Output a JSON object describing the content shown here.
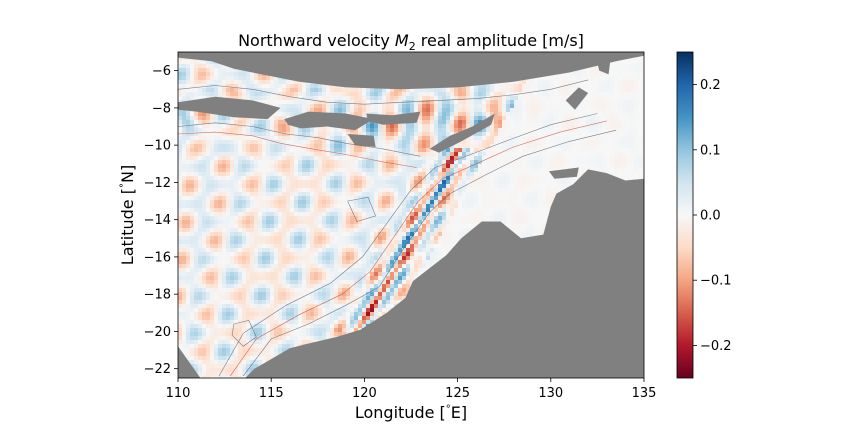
{
  "chart_data": {
    "type": "heatmap",
    "title": "Northward velocity M2 real amplitude [m/s]",
    "title_parts": {
      "pre": "Northward velocity ",
      "sym": "M",
      "sub": "2",
      "post": " real amplitude [m/s]"
    },
    "xlabel": "Longitude [$^\\circ$E]",
    "ylabel": "Latitude [$^\\circ$N]",
    "xlabel_parts": {
      "pre": "Longitude [",
      "deg": "°",
      "post": "E]"
    },
    "ylabel_parts": {
      "pre": "Latitude [",
      "deg": "°",
      "post": "N]"
    },
    "xlim": [
      110,
      135
    ],
    "ylim": [
      -22.5,
      -5
    ],
    "xticks": [
      110,
      115,
      120,
      125,
      130,
      135
    ],
    "yticks": [
      -22,
      -20,
      -18,
      -16,
      -14,
      -12,
      -10,
      -8,
      -6
    ],
    "xtick_labels": [
      "110",
      "115",
      "120",
      "125",
      "130",
      "135"
    ],
    "ytick_labels": [
      "−22",
      "−20",
      "−18",
      "−16",
      "−14",
      "−12",
      "−10",
      "−8",
      "−6"
    ],
    "colorbar": {
      "vmin": -0.25,
      "vmax": 0.25,
      "colormap": "RdBu_r",
      "ticks": [
        -0.2,
        -0.1,
        0.0,
        0.1,
        0.2
      ],
      "tick_labels": [
        "−0.2",
        "−0.1",
        "0.0",
        "0.1",
        "0.2"
      ]
    },
    "land_color": "#808080",
    "grid": false
  }
}
